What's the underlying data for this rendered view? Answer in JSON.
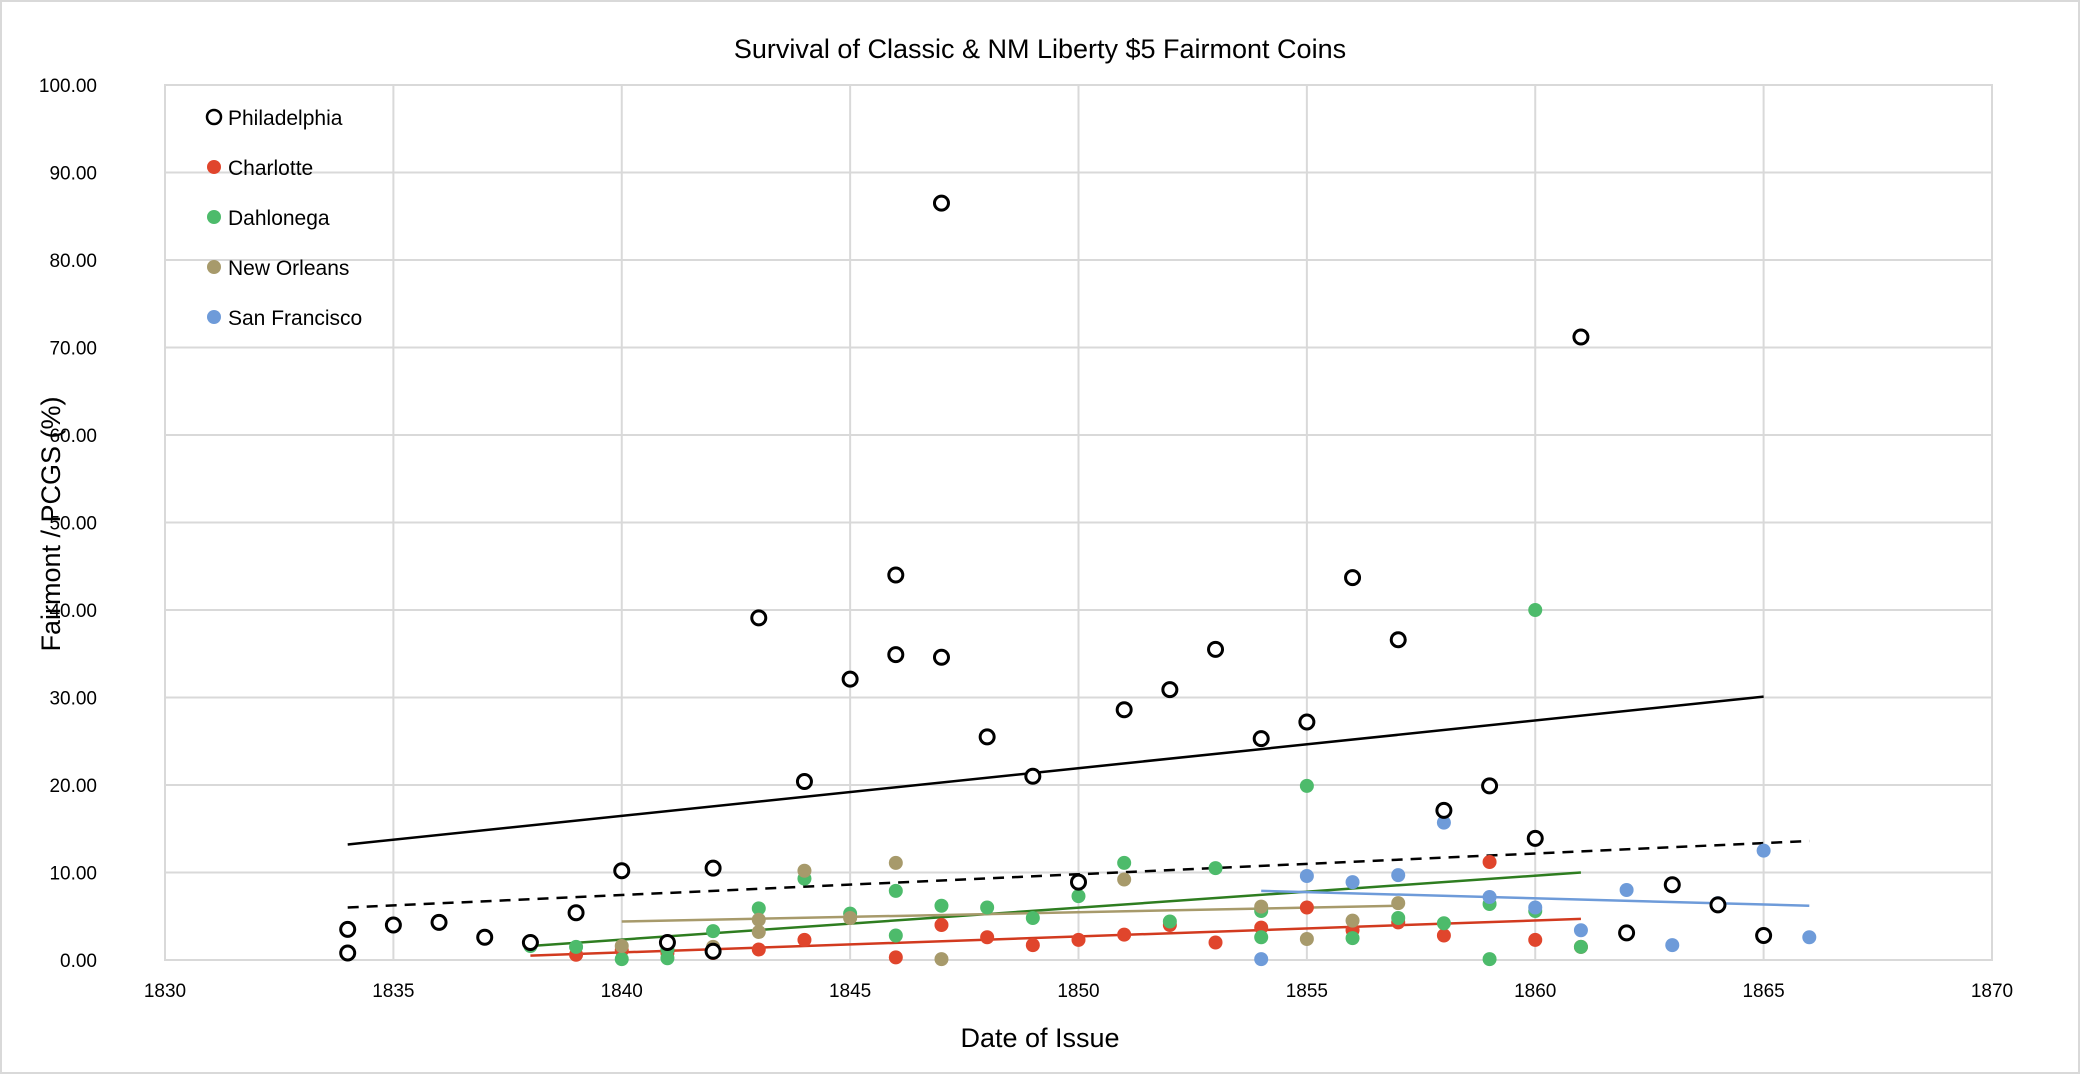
{
  "chart_data": {
    "type": "scatter",
    "title": "Survival of Classic & NM Liberty $5 Fairmont Coins",
    "xlabel": "Date of Issue",
    "ylabel": "Fairmont / PCGS (%)",
    "xlim": [
      1830,
      1870
    ],
    "ylim": [
      0,
      100
    ],
    "x_ticks": [
      "1830",
      "1835",
      "1840",
      "1845",
      "1850",
      "1855",
      "1860",
      "1865",
      "1870"
    ],
    "y_ticks": [
      "0.00",
      "10.00",
      "20.00",
      "30.00",
      "40.00",
      "50.00",
      "60.00",
      "70.00",
      "80.00",
      "90.00",
      "100.00"
    ],
    "x_tick_values": [
      1830,
      1835,
      1840,
      1845,
      1850,
      1855,
      1860,
      1865,
      1870
    ],
    "y_tick_values": [
      0,
      10,
      20,
      30,
      40,
      50,
      60,
      70,
      80,
      90,
      100
    ],
    "grid": true,
    "legend_position": "top-left",
    "series": [
      {
        "name": "Philadelphia",
        "marker": "hollow",
        "color": "#000000",
        "points": [
          [
            1834,
            3.5
          ],
          [
            1834,
            0.8
          ],
          [
            1835,
            4.0
          ],
          [
            1836,
            4.3
          ],
          [
            1837,
            2.6
          ],
          [
            1838,
            2.0
          ],
          [
            1839,
            5.4
          ],
          [
            1840,
            10.2
          ],
          [
            1841,
            2.0
          ],
          [
            1842,
            10.5
          ],
          [
            1842,
            1.0
          ],
          [
            1843,
            39.1
          ],
          [
            1844,
            20.4
          ],
          [
            1845,
            32.1
          ],
          [
            1846,
            44.0
          ],
          [
            1846,
            34.9
          ],
          [
            1847,
            86.5
          ],
          [
            1847,
            34.6
          ],
          [
            1848,
            25.5
          ],
          [
            1849,
            21.0
          ],
          [
            1850,
            8.9
          ],
          [
            1851,
            28.6
          ],
          [
            1852,
            30.9
          ],
          [
            1853,
            35.5
          ],
          [
            1854,
            25.3
          ],
          [
            1855,
            27.2
          ],
          [
            1856,
            43.7
          ],
          [
            1857,
            36.6
          ],
          [
            1858,
            17.1
          ],
          [
            1859,
            19.9
          ],
          [
            1860,
            13.9
          ],
          [
            1861,
            71.2
          ],
          [
            1862,
            3.1
          ],
          [
            1863,
            8.6
          ],
          [
            1864,
            6.3
          ],
          [
            1865,
            2.8
          ]
        ]
      },
      {
        "name": "Charlotte",
        "marker": "filled",
        "color": "#e0452c",
        "points": [
          [
            1838,
            1.8
          ],
          [
            1839,
            0.6
          ],
          [
            1840,
            1.1
          ],
          [
            1841,
            0.8
          ],
          [
            1842,
            0.8
          ],
          [
            1843,
            1.2
          ],
          [
            1844,
            2.3
          ],
          [
            1846,
            0.3
          ],
          [
            1847,
            4.0
          ],
          [
            1848,
            2.6
          ],
          [
            1849,
            1.7
          ],
          [
            1850,
            2.3
          ],
          [
            1851,
            2.9
          ],
          [
            1852,
            4.0
          ],
          [
            1853,
            2.0
          ],
          [
            1854,
            3.7
          ],
          [
            1855,
            6.0
          ],
          [
            1856,
            3.4
          ],
          [
            1857,
            4.3
          ],
          [
            1858,
            2.8
          ],
          [
            1859,
            11.2
          ],
          [
            1860,
            2.3
          ],
          [
            1861,
            1.5
          ]
        ]
      },
      {
        "name": "Dahlonega",
        "marker": "filled",
        "color": "#4dbb6b",
        "points": [
          [
            1838,
            1.6
          ],
          [
            1839,
            1.5
          ],
          [
            1840,
            0.1
          ],
          [
            1841,
            0.2
          ],
          [
            1841,
            1.2
          ],
          [
            1842,
            3.3
          ],
          [
            1843,
            5.9
          ],
          [
            1844,
            9.3
          ],
          [
            1845,
            5.3
          ],
          [
            1846,
            2.8
          ],
          [
            1846,
            7.9
          ],
          [
            1847,
            6.2
          ],
          [
            1848,
            6.0
          ],
          [
            1849,
            4.8
          ],
          [
            1850,
            7.3
          ],
          [
            1851,
            11.1
          ],
          [
            1852,
            4.4
          ],
          [
            1853,
            10.5
          ],
          [
            1854,
            2.6
          ],
          [
            1854,
            5.6
          ],
          [
            1855,
            19.9
          ],
          [
            1856,
            2.5
          ],
          [
            1857,
            4.8
          ],
          [
            1858,
            4.2
          ],
          [
            1859,
            6.4
          ],
          [
            1859,
            0.1
          ],
          [
            1860,
            5.6
          ],
          [
            1860,
            40.0
          ],
          [
            1861,
            1.5
          ]
        ]
      },
      {
        "name": "New Orleans",
        "marker": "filled",
        "color": "#a79a6b",
        "points": [
          [
            1840,
            1.6
          ],
          [
            1842,
            1.5
          ],
          [
            1843,
            3.2
          ],
          [
            1843,
            4.6
          ],
          [
            1844,
            10.2
          ],
          [
            1845,
            4.8
          ],
          [
            1846,
            11.1
          ],
          [
            1847,
            0.1
          ],
          [
            1851,
            9.2
          ],
          [
            1854,
            6.1
          ],
          [
            1855,
            2.4
          ],
          [
            1856,
            4.5
          ],
          [
            1857,
            6.5
          ]
        ]
      },
      {
        "name": "San Francisco",
        "marker": "filled",
        "color": "#6e9bd9",
        "points": [
          [
            1854,
            0.1
          ],
          [
            1855,
            9.6
          ],
          [
            1856,
            8.9
          ],
          [
            1857,
            9.7
          ],
          [
            1858,
            15.7
          ],
          [
            1859,
            7.2
          ],
          [
            1860,
            6.0
          ],
          [
            1861,
            3.4
          ],
          [
            1862,
            8.0
          ],
          [
            1863,
            1.7
          ],
          [
            1864,
            6.5
          ],
          [
            1865,
            12.5
          ],
          [
            1866,
            2.6
          ]
        ]
      }
    ],
    "trendlines": [
      {
        "series": "Philadelphia",
        "style": "solid",
        "color": "#000000",
        "from": [
          1834,
          13.2
        ],
        "to": [
          1865,
          30.1
        ]
      },
      {
        "series": "All",
        "style": "dashed",
        "color": "#000000",
        "from": [
          1834,
          6.0
        ],
        "to": [
          1866,
          13.6
        ]
      },
      {
        "series": "Charlotte",
        "style": "solid",
        "color": "#d23a1f",
        "from": [
          1838,
          0.5
        ],
        "to": [
          1861,
          4.7
        ]
      },
      {
        "series": "Dahlonega",
        "style": "solid",
        "color": "#2e7d20",
        "from": [
          1838,
          1.6
        ],
        "to": [
          1861,
          10.0
        ]
      },
      {
        "series": "New Orleans",
        "style": "solid",
        "color": "#a79a6b",
        "from": [
          1840,
          4.4
        ],
        "to": [
          1857,
          6.2
        ]
      },
      {
        "series": "San Francisco",
        "style": "solid",
        "color": "#6e9bd9",
        "from": [
          1854,
          7.9
        ],
        "to": [
          1866,
          6.2
        ]
      }
    ]
  }
}
